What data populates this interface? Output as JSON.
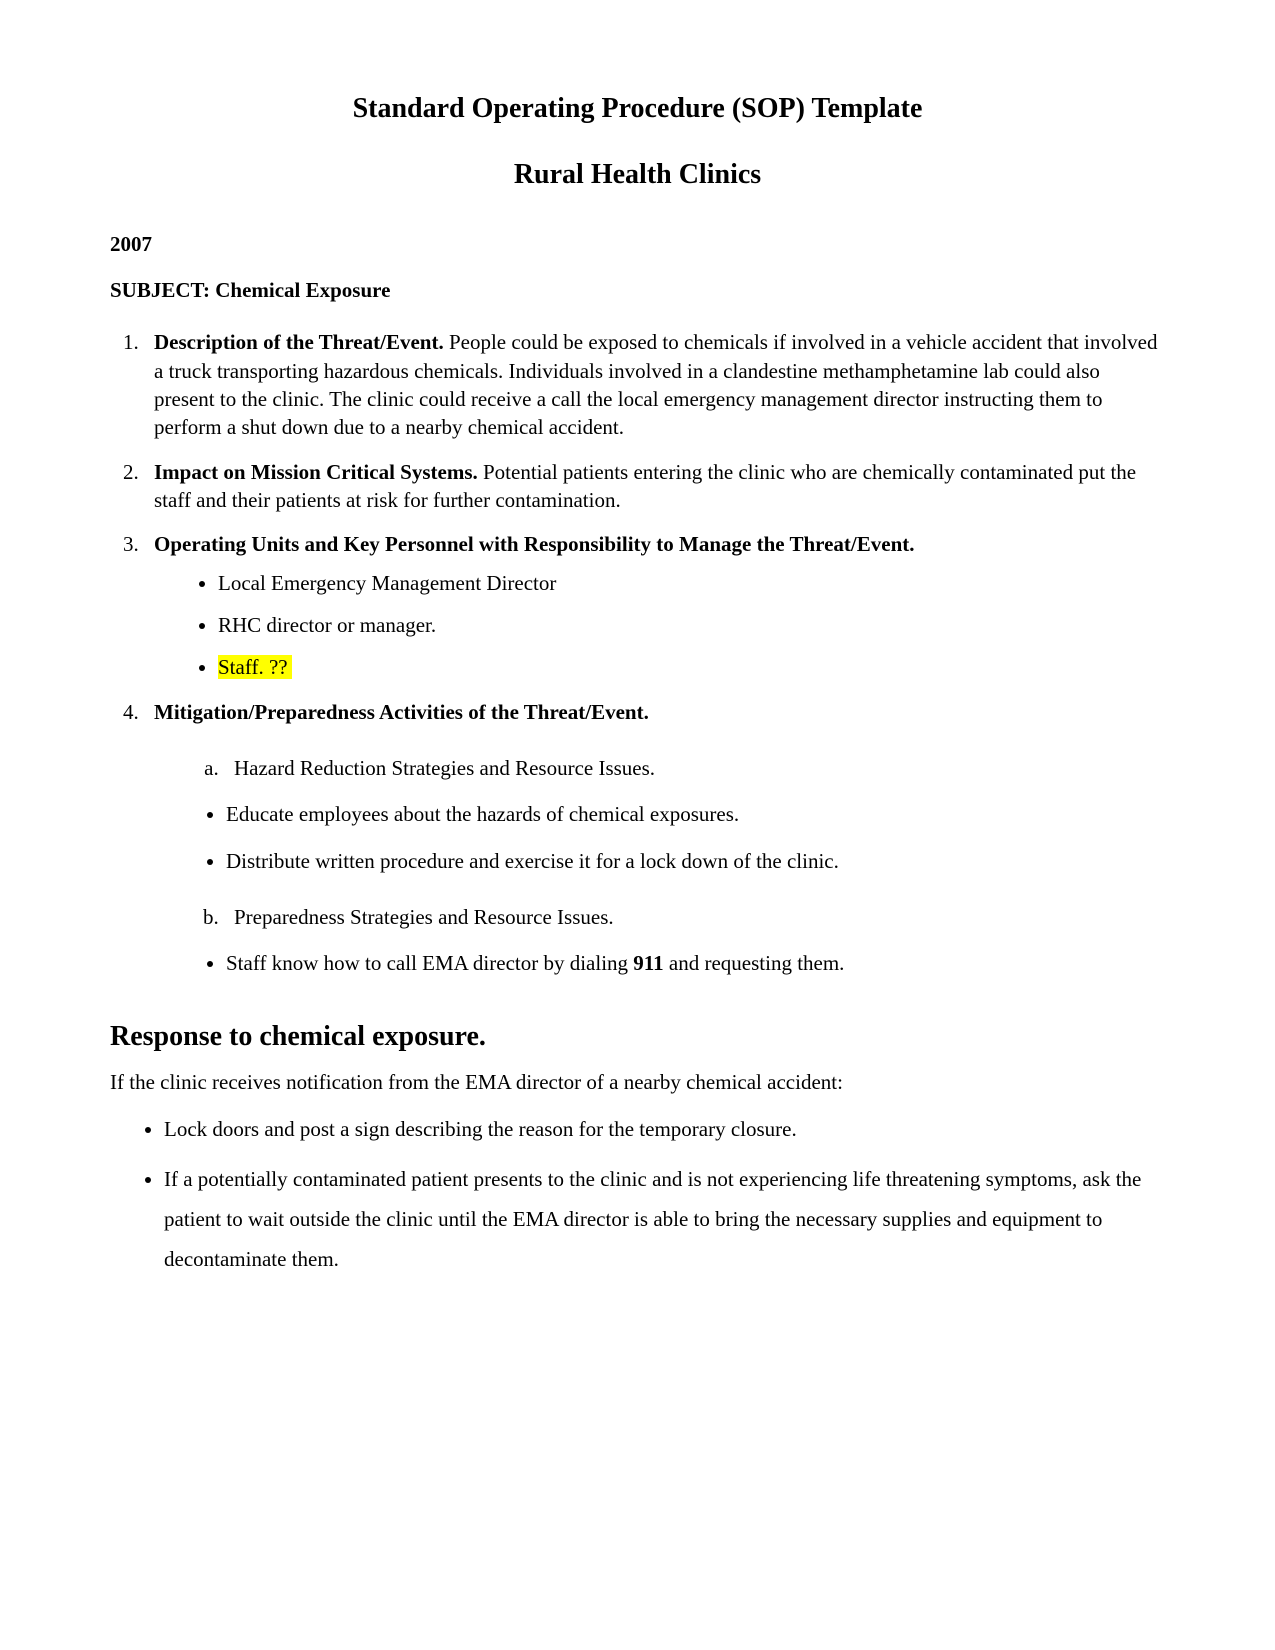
{
  "colors": {
    "background": "#ffffff",
    "text": "#000000",
    "highlight": "#ffff00"
  },
  "typography": {
    "font_family": "Times New Roman",
    "body_fontsize_pt": 12,
    "heading_fontsize_pt": 16
  },
  "header": {
    "title1": "Standard Operating Procedure (SOP) Template",
    "title2": "Rural Health Clinics",
    "year": "2007",
    "subject_label": "SUBJECT:",
    "subject_value": "Chemical Exposure"
  },
  "items": [
    {
      "heading": "Description of the Threat/Event.",
      "body": " People could be exposed to chemicals if involved in a vehicle accident that involved a truck transporting hazardous chemicals.  Individuals involved in a clandestine methamphetamine lab could also present to the clinic.  The clinic could receive a call the local emergency management director instructing them to perform a shut down due to a nearby chemical accident."
    },
    {
      "heading": "Impact on Mission Critical Systems.",
      "body": "  Potential patients entering the clinic who are chemically contaminated put the staff and their patients at risk for further contamination."
    },
    {
      "heading": "Operating Units and Key Personnel with Responsibility to Manage the Threat/Event.",
      "bullets": [
        {
          "text": "Local Emergency Management Director",
          "highlight": false
        },
        {
          "text": "RHC director or manager.",
          "highlight": false
        },
        {
          "text": "Staff.  ??",
          "highlight": true
        }
      ]
    },
    {
      "heading": "Mitigation/Preparedness Activities of the Threat/Event.",
      "sub": [
        {
          "label": "Hazard Reduction Strategies and Resource Issues.",
          "bullets": [
            "Educate employees about the hazards of chemical exposures.",
            "Distribute written procedure and exercise it for a lock down of the clinic."
          ]
        },
        {
          "label": "Preparedness Strategies and Resource Issues.",
          "bullets_rich": [
            {
              "pre": "Staff know how to call EMA director by dialing ",
              "bold": "911",
              "post": " and requesting them."
            }
          ]
        }
      ]
    }
  ],
  "response": {
    "heading": "Response to chemical exposure.",
    "lead": "If the clinic receives notification from the EMA director of a nearby chemical accident:",
    "bullets": [
      "Lock doors and post a sign describing the reason for the temporary closure.",
      "If a potentially contaminated patient presents to the clinic and is not experiencing life threatening symptoms, ask the patient to wait outside the clinic until the EMA director is able to bring the necessary supplies and equipment to decontaminate them."
    ]
  }
}
